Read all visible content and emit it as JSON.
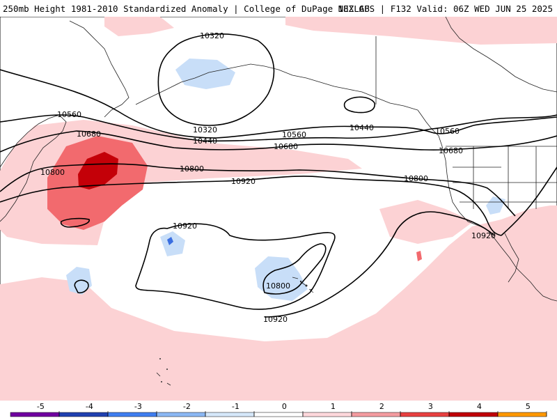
{
  "header": {
    "left_title": "250mb Height 1981-2010 Standardized Anomaly | College of DuPage NEXLAB",
    "right_title": "18Z GFS | F132 Valid: 06Z WED JUN 25 2025"
  },
  "map": {
    "contour_labels": {
      "h10320_top": "10320",
      "h10320_bottom": "10320",
      "h10440_a": "10440",
      "h10440_b": "10440",
      "h10560_a": "10560",
      "h10560_b": "10560",
      "h10560_c": "10560",
      "h10680_a": "10680",
      "h10680_b": "10680",
      "h10680_c": "10680",
      "h10800_a": "10800",
      "h10800_b": "10800",
      "h10800_c": "10800",
      "h10800_d": "10800",
      "h10920_a": "10920",
      "h10920_b": "10920",
      "h10920_c": "10920",
      "h10920_d": "10920"
    },
    "colors": {
      "pos1": "#fcd2d4",
      "pos2": "#f26a6e",
      "pos3": "#c40008",
      "neg1": "#c8def8",
      "neg2": "#3a6ee0"
    }
  },
  "colorbar": {
    "ticks": [
      "-5",
      "-4",
      "-3",
      "-2",
      "-1",
      "0",
      "1",
      "2",
      "3",
      "4",
      "5"
    ],
    "colors": [
      "#7000a0",
      "#2040b0",
      "#3f7ef0",
      "#8cb8f4",
      "#d6e8fa",
      "#ffffff",
      "#ffd8dc",
      "#f49ca0",
      "#e84040",
      "#c00008",
      "#ff9900"
    ]
  }
}
